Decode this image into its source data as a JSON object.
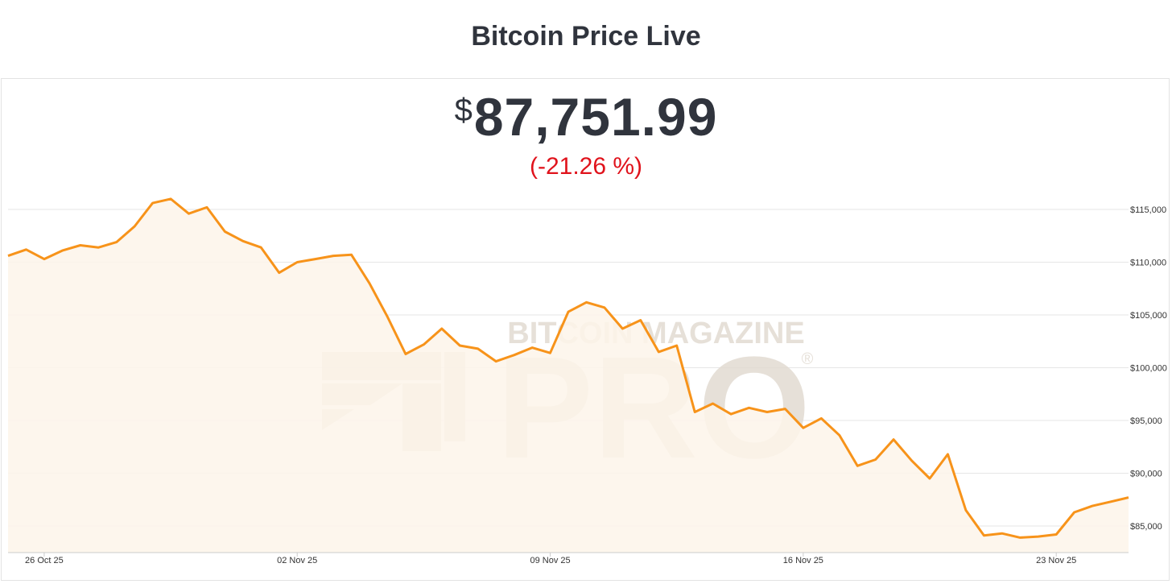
{
  "header": {
    "title": "Bitcoin Price Live"
  },
  "price": {
    "currency": "$",
    "value": "87,751.99",
    "change": "(-21.26 %)"
  },
  "watermark": {
    "top_text": "BITCOIN MAGAZINE",
    "main_text": "PRO",
    "mark": "®"
  },
  "colors": {
    "line": "#f7931a",
    "area": "#fdf5ea",
    "change_negative": "#e0131c",
    "grid": "#e6e6e6"
  },
  "chart_data": {
    "type": "area",
    "title": "",
    "xlabel": "",
    "ylabel": "",
    "x_ticks": [
      "26 Oct 25",
      "02 Nov 25",
      "09 Nov 25",
      "16 Nov 25",
      "23 Nov 25"
    ],
    "y_ticks": [
      "$85,000",
      "$90,000",
      "$95,000",
      "$100,000",
      "$105,000",
      "$110,000",
      "$115,000"
    ],
    "ylim": [
      82500,
      116500
    ],
    "grid": true,
    "legend": "none",
    "series": [
      {
        "x": [
          "2025-10-25T00:00",
          "2025-10-25T12:00",
          "2025-10-26T00:00",
          "2025-10-26T12:00",
          "2025-10-27T00:00",
          "2025-10-27T12:00",
          "2025-10-28T00:00",
          "2025-10-28T12:00",
          "2025-10-29T00:00",
          "2025-10-29T12:00",
          "2025-10-30T00:00",
          "2025-10-30T12:00",
          "2025-10-31T00:00",
          "2025-10-31T12:00",
          "2025-11-01T00:00",
          "2025-11-01T12:00",
          "2025-11-02T00:00",
          "2025-11-02T12:00",
          "2025-11-03T00:00",
          "2025-11-03T12:00",
          "2025-11-04T00:00",
          "2025-11-04T12:00",
          "2025-11-05T00:00",
          "2025-11-05T12:00",
          "2025-11-06T00:00",
          "2025-11-06T12:00",
          "2025-11-07T00:00",
          "2025-11-07T12:00",
          "2025-11-08T00:00",
          "2025-11-08T12:00",
          "2025-11-09T00:00",
          "2025-11-09T12:00",
          "2025-11-10T00:00",
          "2025-11-10T12:00",
          "2025-11-11T00:00",
          "2025-11-11T12:00",
          "2025-11-12T00:00",
          "2025-11-12T12:00",
          "2025-11-13T00:00",
          "2025-11-13T12:00",
          "2025-11-14T00:00",
          "2025-11-14T12:00",
          "2025-11-15T00:00",
          "2025-11-15T12:00",
          "2025-11-16T00:00",
          "2025-11-16T12:00",
          "2025-11-17T00:00",
          "2025-11-17T12:00",
          "2025-11-18T00:00",
          "2025-11-18T12:00",
          "2025-11-19T00:00",
          "2025-11-19T12:00",
          "2025-11-20T00:00",
          "2025-11-20T12:00",
          "2025-11-21T00:00",
          "2025-11-21T12:00",
          "2025-11-22T00:00",
          "2025-11-22T12:00",
          "2025-11-23T00:00",
          "2025-11-23T12:00",
          "2025-11-24T00:00",
          "2025-11-24T12:00",
          "2025-11-25T00:00"
        ],
        "values": [
          110600,
          111200,
          110300,
          111100,
          111600,
          111400,
          111900,
          113400,
          115600,
          116000,
          114600,
          115200,
          112900,
          112000,
          111400,
          109000,
          110000,
          110300,
          110600,
          110700,
          108000,
          104800,
          101300,
          102200,
          103700,
          102100,
          101800,
          100600,
          101200,
          101900,
          101400,
          105300,
          106200,
          105700,
          103700,
          104500,
          101500,
          102100,
          95800,
          96600,
          95600,
          96200,
          95800,
          96100,
          94300,
          95200,
          93600,
          90700,
          91300,
          93200,
          91200,
          89500,
          91800,
          86500,
          84100,
          84300,
          83900,
          84000,
          84200,
          86300,
          86900,
          87300,
          87700
        ]
      }
    ]
  }
}
